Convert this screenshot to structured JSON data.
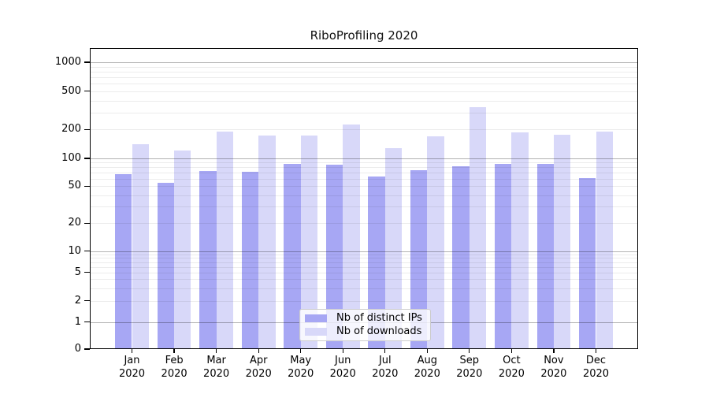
{
  "chart_data": {
    "type": "bar",
    "title": "RiboProfiling 2020",
    "x": {
      "months": [
        "Jan",
        "Feb",
        "Mar",
        "Apr",
        "May",
        "Jun",
        "Jul",
        "Aug",
        "Sep",
        "Oct",
        "Nov",
        "Dec"
      ],
      "year": "2020"
    },
    "y_axis": {
      "scale": "symlog",
      "tick_values": [
        0,
        1,
        2,
        5,
        10,
        20,
        50,
        100,
        200,
        500,
        1000
      ],
      "major_gridlines": [
        1,
        10,
        100,
        1000
      ],
      "minor_gridlines_per_decade": [
        2,
        3,
        4,
        5,
        6,
        7,
        8,
        9
      ],
      "range_top": 1000,
      "grid": "on"
    },
    "series": [
      {
        "name": "Nb of distinct IPs",
        "color": "#a7a7f4",
        "values": [
          68,
          55,
          73,
          72,
          87,
          86,
          64,
          75,
          82,
          88,
          87,
          61
        ]
      },
      {
        "name": "Nb of downloads",
        "color": "#d8d8f9",
        "values": [
          140,
          122,
          190,
          174,
          173,
          225,
          128,
          170,
          340,
          187,
          176,
          190
        ]
      }
    ],
    "legend": {
      "position": "lower center",
      "entries": [
        "Nb of distinct IPs",
        "Nb of downloads"
      ]
    }
  }
}
